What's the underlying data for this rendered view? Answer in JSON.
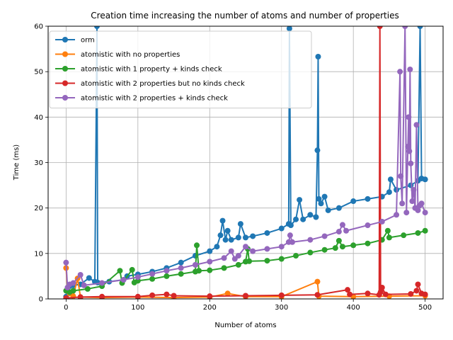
{
  "chart_data": {
    "type": "line",
    "title": "Creation time increasing the number of atoms and number of properties",
    "xlabel": "Number of atoms",
    "ylabel": "Time (ms)",
    "xlim": [
      -25,
      525
    ],
    "ylim": [
      0,
      60
    ],
    "xticks": [
      0,
      100,
      200,
      300,
      400,
      500
    ],
    "yticks": [
      0,
      10,
      20,
      30,
      40,
      50,
      60
    ],
    "grid": true,
    "legend_position": "upper-left",
    "series": [
      {
        "name": "orm",
        "color": "#1f77b4",
        "points": [
          [
            0,
            0.5
          ],
          [
            2,
            1.8
          ],
          [
            5,
            2.8
          ],
          [
            10,
            3.0
          ],
          [
            20,
            3.2
          ],
          [
            32,
            4.6
          ],
          [
            40,
            3.8
          ],
          [
            43,
            60
          ],
          [
            44,
            3.6
          ],
          [
            60,
            3.8
          ],
          [
            80,
            4.2
          ],
          [
            85,
            5.0
          ],
          [
            100,
            5.4
          ],
          [
            120,
            6.0
          ],
          [
            140,
            6.8
          ],
          [
            160,
            8.0
          ],
          [
            180,
            9.5
          ],
          [
            200,
            10.5
          ],
          [
            210,
            11.5
          ],
          [
            215,
            14.0
          ],
          [
            218,
            17.2
          ],
          [
            222,
            13.0
          ],
          [
            225,
            15.0
          ],
          [
            230,
            13.0
          ],
          [
            240,
            13.5
          ],
          [
            243,
            16.5
          ],
          [
            250,
            13.5
          ],
          [
            260,
            13.8
          ],
          [
            280,
            14.5
          ],
          [
            300,
            15.5
          ],
          [
            310,
            16.5
          ],
          [
            311,
            59.5
          ],
          [
            313,
            16.2
          ],
          [
            320,
            17.5
          ],
          [
            325,
            21.8
          ],
          [
            330,
            17.5
          ],
          [
            340,
            18.5
          ],
          [
            348,
            18.0
          ],
          [
            350,
            32.7
          ],
          [
            351,
            53.3
          ],
          [
            352,
            22.0
          ],
          [
            355,
            21.0
          ],
          [
            360,
            22.5
          ],
          [
            365,
            19.5
          ],
          [
            380,
            20.0
          ],
          [
            400,
            21.5
          ],
          [
            420,
            22.0
          ],
          [
            440,
            22.5
          ],
          [
            450,
            23.5
          ],
          [
            452,
            26.3
          ],
          [
            460,
            24.0
          ],
          [
            480,
            25.0
          ],
          [
            490,
            26.0
          ],
          [
            493,
            60
          ],
          [
            495,
            26.5
          ],
          [
            500,
            26.3
          ]
        ]
      },
      {
        "name": "atomistic with no properties",
        "color": "#ff7f0e",
        "points": [
          [
            0,
            6.8
          ],
          [
            2,
            2.0
          ],
          [
            5,
            1.2
          ],
          [
            10,
            0.6
          ],
          [
            16,
            4.5
          ],
          [
            20,
            0.4
          ],
          [
            50,
            0.3
          ],
          [
            100,
            0.4
          ],
          [
            150,
            0.3
          ],
          [
            200,
            0.4
          ],
          [
            225,
            1.2
          ],
          [
            250,
            0.5
          ],
          [
            300,
            0.5
          ],
          [
            350,
            3.8
          ],
          [
            352,
            0.6
          ],
          [
            400,
            0.5
          ],
          [
            450,
            0.6
          ],
          [
            500,
            0.7
          ]
        ]
      },
      {
        "name": "atomistic with 1 property + kinds check",
        "color": "#2ca02c",
        "points": [
          [
            0,
            1.8
          ],
          [
            5,
            1.5
          ],
          [
            10,
            1.8
          ],
          [
            30,
            2.2
          ],
          [
            50,
            2.8
          ],
          [
            75,
            6.2
          ],
          [
            78,
            3.5
          ],
          [
            92,
            6.4
          ],
          [
            95,
            3.6
          ],
          [
            100,
            4.0
          ],
          [
            120,
            4.4
          ],
          [
            140,
            5.0
          ],
          [
            160,
            5.5
          ],
          [
            180,
            6.0
          ],
          [
            182,
            11.8
          ],
          [
            185,
            6.2
          ],
          [
            200,
            6.3
          ],
          [
            220,
            6.8
          ],
          [
            240,
            7.5
          ],
          [
            250,
            8.2
          ],
          [
            253,
            11.0
          ],
          [
            255,
            8.3
          ],
          [
            280,
            8.4
          ],
          [
            300,
            8.8
          ],
          [
            320,
            9.5
          ],
          [
            340,
            10.2
          ],
          [
            360,
            10.8
          ],
          [
            375,
            11.2
          ],
          [
            380,
            12.8
          ],
          [
            385,
            11.5
          ],
          [
            400,
            11.8
          ],
          [
            420,
            12.2
          ],
          [
            440,
            13.0
          ],
          [
            448,
            15.0
          ],
          [
            450,
            13.5
          ],
          [
            470,
            14.0
          ],
          [
            490,
            14.5
          ],
          [
            500,
            15.0
          ]
        ]
      },
      {
        "name": "atomistic with 2 properties but no kinds check",
        "color": "#d62728",
        "points": [
          [
            0,
            0.2
          ],
          [
            20,
            0.4
          ],
          [
            50,
            0.5
          ],
          [
            100,
            0.5
          ],
          [
            120,
            0.8
          ],
          [
            140,
            1.0
          ],
          [
            150,
            0.7
          ],
          [
            200,
            0.6
          ],
          [
            250,
            0.7
          ],
          [
            300,
            0.8
          ],
          [
            350,
            0.9
          ],
          [
            392,
            2.0
          ],
          [
            395,
            1.0
          ],
          [
            420,
            1.2
          ],
          [
            436,
            0.9
          ],
          [
            437,
            60
          ],
          [
            438,
            1.5
          ],
          [
            440,
            2.5
          ],
          [
            445,
            1.0
          ],
          [
            480,
            1.1
          ],
          [
            488,
            1.8
          ],
          [
            490,
            3.2
          ],
          [
            495,
            1.2
          ],
          [
            500,
            1.0
          ]
        ]
      },
      {
        "name": "atomistic with 2 properties + kinds check",
        "color": "#9467bd",
        "points": [
          [
            0,
            8.0
          ],
          [
            2,
            2.5
          ],
          [
            5,
            3.2
          ],
          [
            10,
            3.5
          ],
          [
            20,
            5.3
          ],
          [
            25,
            3.0
          ],
          [
            50,
            3.5
          ],
          [
            80,
            4.2
          ],
          [
            100,
            4.8
          ],
          [
            120,
            5.5
          ],
          [
            140,
            6.2
          ],
          [
            160,
            6.8
          ],
          [
            180,
            7.5
          ],
          [
            200,
            8.2
          ],
          [
            220,
            9.0
          ],
          [
            230,
            10.5
          ],
          [
            235,
            8.8
          ],
          [
            240,
            9.5
          ],
          [
            250,
            11.5
          ],
          [
            260,
            10.5
          ],
          [
            280,
            11.0
          ],
          [
            300,
            11.5
          ],
          [
            310,
            12.5
          ],
          [
            312,
            14.0
          ],
          [
            315,
            12.5
          ],
          [
            340,
            13.0
          ],
          [
            360,
            13.8
          ],
          [
            380,
            14.8
          ],
          [
            385,
            16.3
          ],
          [
            390,
            15.0
          ],
          [
            420,
            16.2
          ],
          [
            440,
            17.0
          ],
          [
            460,
            18.5
          ],
          [
            465,
            50.0
          ],
          [
            466,
            27.0
          ],
          [
            468,
            21.0
          ],
          [
            472,
            60
          ],
          [
            474,
            19.0
          ],
          [
            476,
            33.5
          ],
          [
            477,
            40.0
          ],
          [
            478,
            32.5
          ],
          [
            479,
            50.5
          ],
          [
            480,
            29.8
          ],
          [
            482,
            21.5
          ],
          [
            484,
            24.0
          ],
          [
            486,
            20.0
          ],
          [
            488,
            38.3
          ],
          [
            490,
            19.5
          ],
          [
            492,
            20.5
          ],
          [
            495,
            21.0
          ],
          [
            500,
            19.0
          ]
        ]
      }
    ]
  }
}
